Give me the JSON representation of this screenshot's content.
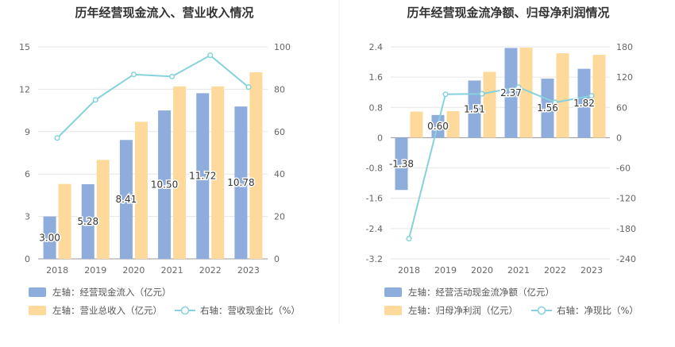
{
  "chart_data": [
    {
      "type": "bar",
      "title": "历年经营现金流入、营业收入情况",
      "categories": [
        "2018",
        "2019",
        "2020",
        "2021",
        "2022",
        "2023"
      ],
      "left_axis": {
        "ticks": [
          "0",
          "3",
          "6",
          "9",
          "12",
          "15"
        ],
        "ylim": [
          0,
          15
        ]
      },
      "right_axis": {
        "ticks": [
          "0",
          "20",
          "40",
          "60",
          "80",
          "100"
        ],
        "ylim": [
          0,
          100
        ]
      },
      "series": [
        {
          "name": "左轴：经营现金流入（亿元）",
          "axis": "left",
          "type": "bar",
          "color": "#8eacdc",
          "values": [
            3.0,
            5.28,
            8.41,
            10.5,
            11.72,
            10.78
          ],
          "labels": [
            "3.00",
            "5.28",
            "8.41",
            "10.50",
            "11.72",
            "10.78"
          ]
        },
        {
          "name": "左轴：营业总收入（亿元）",
          "axis": "left",
          "type": "bar",
          "color": "#fdd99b",
          "values": [
            5.3,
            7.0,
            9.7,
            12.2,
            12.2,
            13.2
          ]
        },
        {
          "name": "右轴：营收现金比（%）",
          "axis": "right",
          "type": "line",
          "color": "#85d2dc",
          "values": [
            57,
            75,
            87,
            86,
            96,
            81
          ]
        }
      ]
    },
    {
      "type": "bar",
      "title": "历年经营现金流净额、归母净利润情况",
      "categories": [
        "2018",
        "2019",
        "2020",
        "2021",
        "2022",
        "2023"
      ],
      "left_axis": {
        "ticks": [
          "-3.2",
          "-2.4",
          "-1.6",
          "-0.8",
          "0",
          "0.8",
          "1.6",
          "2.4"
        ],
        "ylim": [
          -3.2,
          2.4
        ]
      },
      "right_axis": {
        "ticks": [
          "-240",
          "-180",
          "-120",
          "-60",
          "0",
          "60",
          "120",
          "180"
        ],
        "ylim": [
          -240,
          180
        ]
      },
      "series": [
        {
          "name": "左轴：经营活动现金流净额（亿元）",
          "axis": "left",
          "type": "bar",
          "color": "#8eacdc",
          "values": [
            -1.38,
            0.6,
            1.51,
            2.37,
            1.56,
            1.82
          ],
          "labels": [
            "-1.38",
            "0.60",
            "1.51",
            "2.37",
            "1.56",
            "1.82"
          ]
        },
        {
          "name": "左轴：归母净利润（亿元）",
          "axis": "left",
          "type": "bar",
          "color": "#fdd99b",
          "values": [
            0.69,
            0.7,
            1.74,
            2.38,
            2.23,
            2.19
          ]
        },
        {
          "name": "右轴：净现比（%）",
          "axis": "right",
          "type": "line",
          "color": "#85d2dc",
          "values": [
            -200,
            86,
            87,
            100,
            70,
            83
          ]
        }
      ]
    }
  ]
}
